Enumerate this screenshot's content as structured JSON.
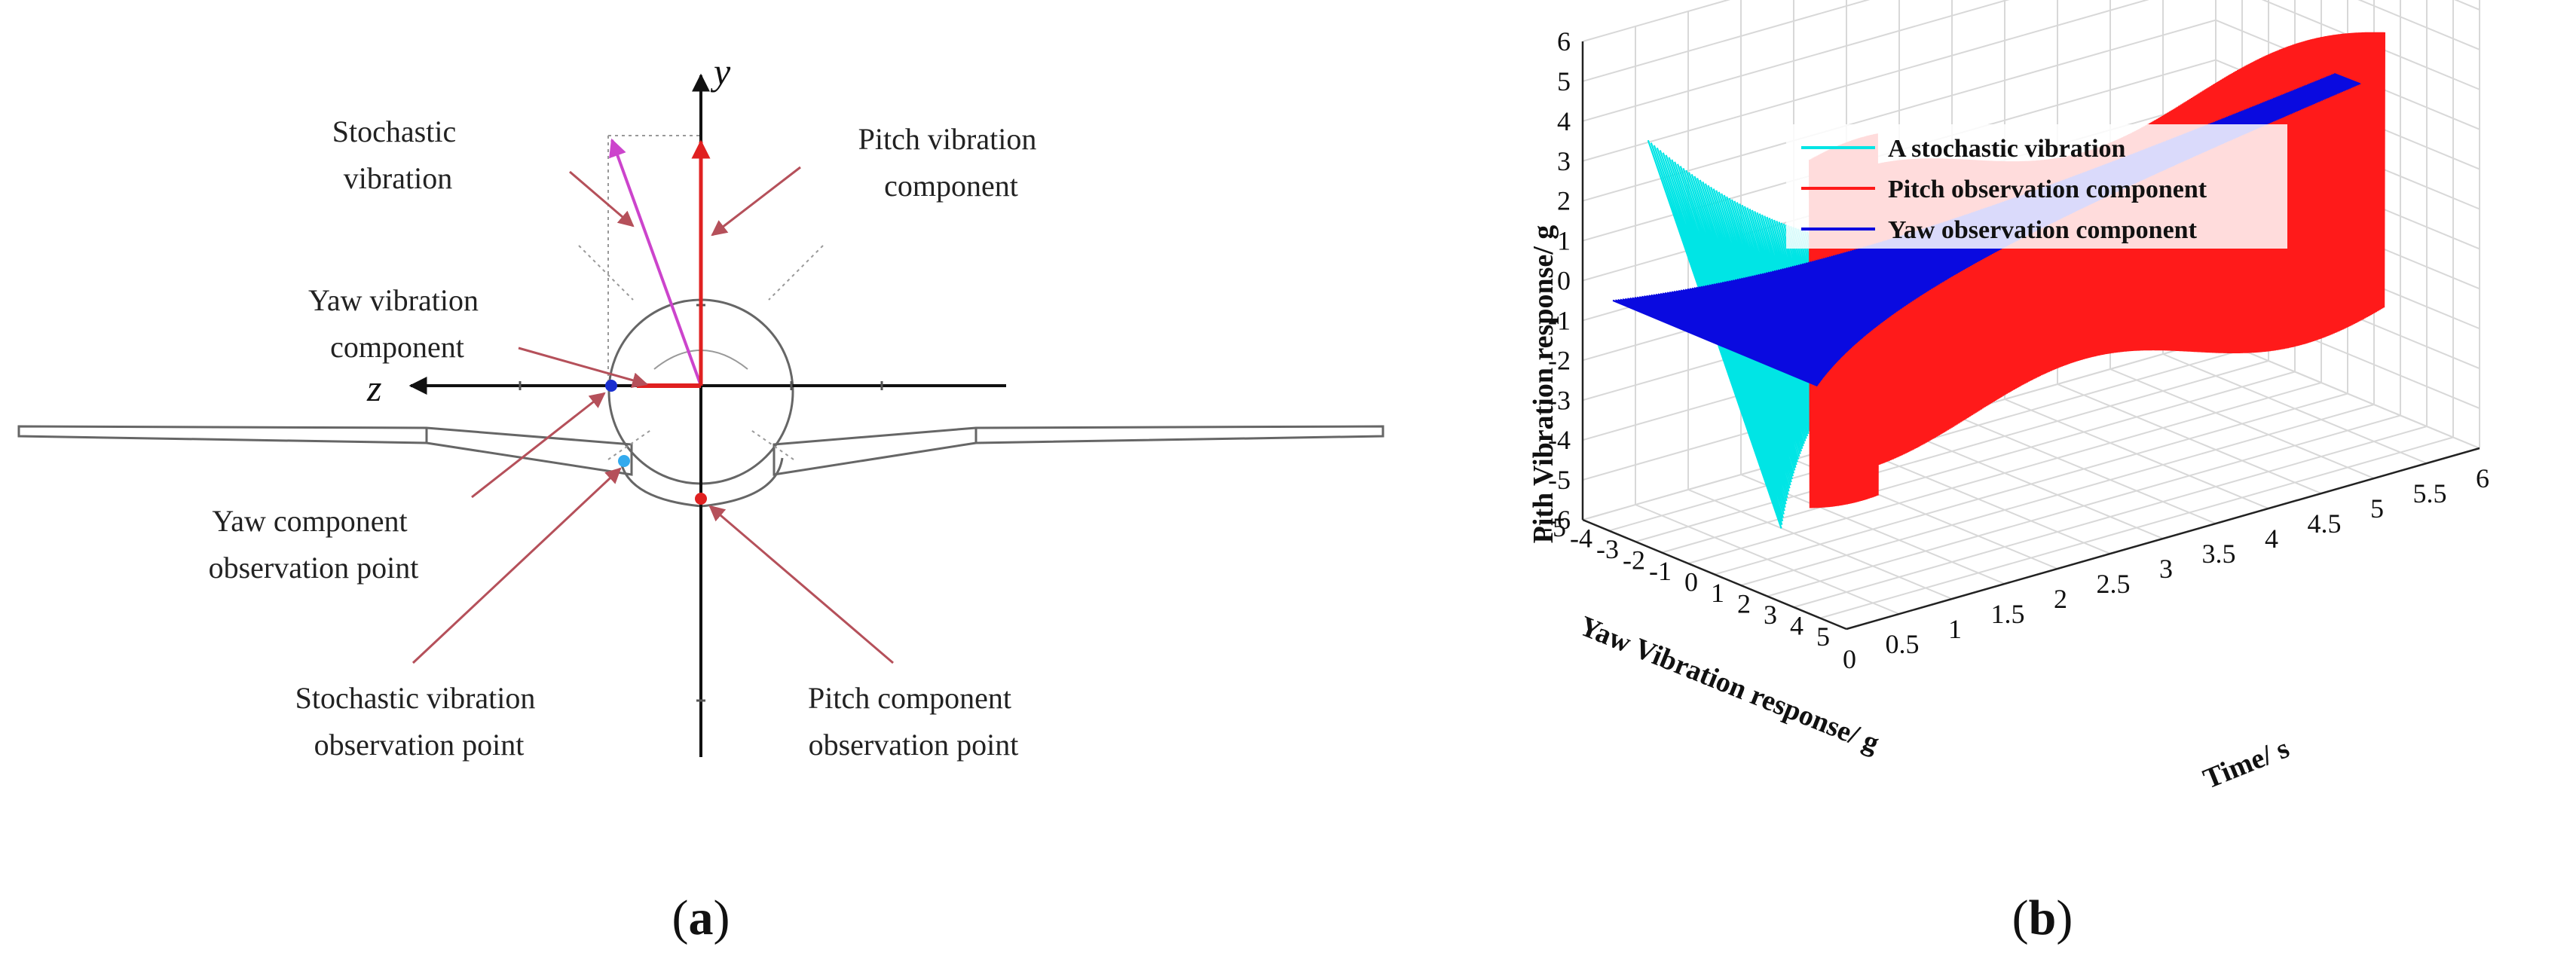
{
  "panel_a": {
    "caption_open": "(",
    "caption_letter": "a",
    "caption_close": ")",
    "axis_y": "y",
    "axis_z": "z",
    "labels": {
      "stochastic_vibration": [
        "Stochastic",
        "vibration"
      ],
      "pitch_vibration_component": [
        "Pitch vibration",
        "component"
      ],
      "yaw_vibration_component": [
        "Yaw vibration",
        "component"
      ],
      "yaw_component_observation_point": [
        "Yaw component",
        "observation point"
      ],
      "stochastic_vibration_observation_point": [
        "Stochastic vibration",
        "observation point"
      ],
      "pitch_component_observation_point": [
        "Pitch component",
        "observation point"
      ]
    },
    "colors": {
      "arrow": "#b5505a",
      "stochastic": "#cc44cc",
      "pitch": "#e02020",
      "yaw_point": "#1a2fd0",
      "stochastic_point": "#33aaee"
    }
  },
  "panel_b": {
    "caption_open": "(",
    "caption_letter": "b",
    "caption_close": ")"
  },
  "chart_data": {
    "type": "line",
    "dimensions": 3,
    "zlabel": "Pith Vibration response/ g",
    "xlabel": "Time/ s",
    "ylabel": "Yaw Vibration response/ g",
    "zlim": [
      -6,
      6
    ],
    "xlim": [
      0,
      6
    ],
    "ylim": [
      -5,
      5
    ],
    "z_ticks": [
      "6",
      "5",
      "4",
      "3",
      "2",
      "1",
      "0",
      "-1",
      "-2",
      "-3",
      "-4",
      "-5",
      "-6"
    ],
    "x_ticks": [
      "0",
      "0.5",
      "1",
      "1.5",
      "2",
      "2.5",
      "3",
      "3.5",
      "4",
      "4.5",
      "5",
      "5.5",
      "6"
    ],
    "y_ticks": [
      "-5",
      "-4",
      "-3",
      "-2",
      "-1",
      "0",
      "1",
      "2",
      "3",
      "4",
      "5"
    ],
    "grid": true,
    "legend_position": "top",
    "series": [
      {
        "name": "A stochastic vibration",
        "color": "#00e5e5"
      },
      {
        "name": "Pitch observation component",
        "color": "#ff1a1a"
      },
      {
        "name": "Yaw observation component",
        "color": "#0a0ae0"
      }
    ]
  }
}
